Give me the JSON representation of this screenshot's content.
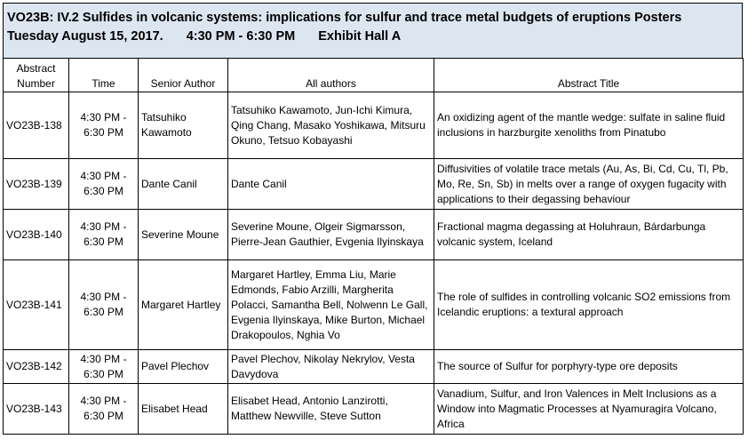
{
  "session": {
    "title": "VO23B: IV.2 Sulfides in volcanic systems: implications for sulfur and trace metal budgets of eruptions Posters",
    "date": "Tuesday August 15, 2017.",
    "time": "4:30 PM - 6:30 PM",
    "location": "Exhibit Hall A"
  },
  "table": {
    "headers": {
      "abstract_number_line1": "Abstract",
      "abstract_number_line2": "Number",
      "time": "Time",
      "senior_author": "Senior Author",
      "all_authors": "All authors",
      "abstract_title": "Abstract Title"
    },
    "rows": [
      {
        "number": "VO23B-138",
        "time_line1": "4:30 PM -",
        "time_line2": "6:30 PM",
        "senior_author": "Tatsuhiko Kawamoto",
        "all_authors": "Tatsuhiko Kawamoto, Jun-Ichi Kimura, Qing Chang, Masako Yoshikawa, Mitsuru Okuno, Tetsuo Kobayashi",
        "title": "An oxidizing agent of the mantle wedge: sulfate in saline fluid inclusions in harzburgite xenoliths from Pinatubo"
      },
      {
        "number": "VO23B-139",
        "time_line1": "4:30 PM -",
        "time_line2": "6:30 PM",
        "senior_author": "Dante Canil",
        "all_authors": "Dante Canil",
        "title": "Diffusivities of volatile trace metals (Au, As, Bi, Cd, Cu, Tl, Pb, Mo, Re, Sn, Sb) in melts over a range of oxygen fugacity with applications to their degassing behaviour"
      },
      {
        "number": "VO23B-140",
        "time_line1": "4:30 PM -",
        "time_line2": "6:30 PM",
        "senior_author": "Severine Moune",
        "all_authors": "Severine Moune, Olgeir Sigmarsson, Pierre-Jean Gauthier, Evgenia Ilyinskaya",
        "title": "Fractional magma degassing at Holuhraun, Bárdarbunga volcanic system, Iceland"
      },
      {
        "number": "VO23B-141",
        "time_line1": "4:30 PM -",
        "time_line2": "6:30 PM",
        "senior_author": "Margaret Hartley",
        "all_authors": "Margaret Hartley, Emma Liu, Marie Edmonds, Fabio Arzilli, Margherita Polacci, Samantha Bell, Nolwenn Le Gall, Evgenia Ilyinskaya, Mike Burton, Michael Drakopoulos, Nghia Vo",
        "title": "The role of sulfides in controlling volcanic SO2 emissions from Icelandic eruptions: a textural approach"
      },
      {
        "number": "VO23B-142",
        "time_line1": "4:30 PM -",
        "time_line2": "6:30 PM",
        "senior_author": "Pavel Plechov",
        "all_authors": "Pavel Plechov, Nikolay Nekrylov, Vesta Davydova",
        "title": "The source of Sulfur for porphyry-type ore deposits"
      },
      {
        "number": "VO23B-143",
        "time_line1": "4:30 PM -",
        "time_line2": "6:30 PM",
        "senior_author": "Elisabet Head",
        "all_authors": "Elisabet Head, Antonio Lanzirotti, Matthew Newville, Steve Sutton",
        "title": "Vanadium, Sulfur, and Iron Valences in Melt Inclusions as a Window into Magmatic Processes at Nyamuragira Volcano, Africa"
      }
    ]
  }
}
